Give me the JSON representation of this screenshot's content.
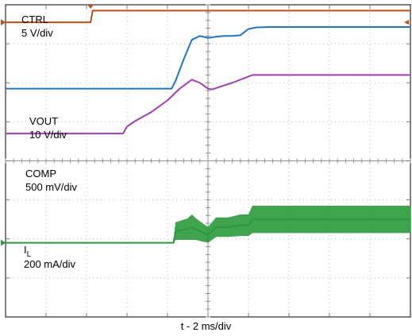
{
  "chart_data": {
    "type": "line",
    "title": "",
    "xlabel": "t - 2 ms/div",
    "ylabel": "",
    "grid": true,
    "xlim": [
      0,
      10
    ],
    "x_unit": "div",
    "y_unit": "div",
    "divisions": {
      "x": 10,
      "y": 8
    },
    "series": [
      {
        "name": "CTRL",
        "label_line1": "CTRL",
        "label_line2": "5 V/div",
        "color": "#c0501a",
        "x": [
          0,
          2.1,
          2.15,
          10
        ],
        "y": [
          7.55,
          7.55,
          7.85,
          7.85
        ]
      },
      {
        "name": "VOUT",
        "label_line1": "VOUT",
        "label_line2": "10 V/div",
        "color": "#1f77c4",
        "x": [
          0,
          4.1,
          4.2,
          4.4,
          4.6,
          4.8,
          5.0,
          5.2,
          5.4,
          5.6,
          5.8,
          6.0,
          6.2,
          6.5,
          7.0,
          8.0,
          10
        ],
        "y": [
          5.85,
          5.85,
          6.05,
          6.6,
          7.1,
          7.2,
          7.15,
          7.18,
          7.2,
          7.2,
          7.22,
          7.38,
          7.42,
          7.43,
          7.43,
          7.43,
          7.43
        ]
      },
      {
        "name": "COMP",
        "label_line1": "COMP",
        "label_line2": "500 mV/div",
        "color": "#a040b0",
        "x": [
          0,
          2.9,
          3.0,
          3.2,
          3.6,
          4.0,
          4.3,
          4.6,
          4.8,
          5.0,
          5.1,
          5.3,
          5.6,
          5.9,
          6.1,
          6.4,
          7.0,
          8.0,
          10
        ],
        "y": [
          4.7,
          4.7,
          4.88,
          5.02,
          5.25,
          5.55,
          5.85,
          6.08,
          6.0,
          5.85,
          5.83,
          5.9,
          6.0,
          6.12,
          6.2,
          6.2,
          6.2,
          6.2,
          6.2
        ]
      },
      {
        "name": "IL",
        "label_line1": "I",
        "label_sub": "L",
        "label_line2": "200 mA/div",
        "color": "#2a9a3a",
        "x": [
          0,
          4.15,
          4.2,
          4.5,
          4.6,
          4.7,
          5.0,
          5.2,
          5.5,
          5.8,
          6.0,
          6.1,
          10
        ],
        "y_center": [
          1.9,
          1.9,
          2.2,
          2.25,
          2.3,
          2.25,
          2.1,
          2.3,
          2.3,
          2.35,
          2.35,
          2.5,
          2.5
        ],
        "y_band": [
          0,
          0,
          0.45,
          0.55,
          0.65,
          0.55,
          0.4,
          0.5,
          0.5,
          0.55,
          0.55,
          0.7,
          0.7
        ]
      }
    ]
  },
  "labels": {
    "ctrl_1": "CTRL",
    "ctrl_2": "5 V/div",
    "vout_1": "VOUT",
    "vout_2": "10 V/div",
    "comp_1": "COMP",
    "comp_2": "500 mV/div",
    "il_1": "I",
    "il_sub": "L",
    "il_2": "200 mA/div"
  }
}
